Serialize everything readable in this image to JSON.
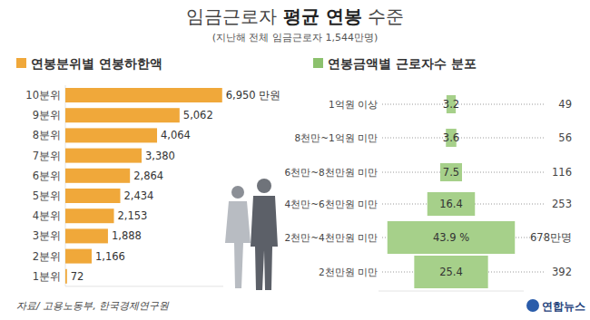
{
  "title": [
    "임금근로자",
    "평균 연봉",
    "수준"
  ],
  "subtitle": "(지난해 전체 임금근로자 1,544만명)",
  "source": "자료/ 고용노동부, 한국경제연구원",
  "credit": "연합뉴스",
  "chart_data": [
    {
      "type": "bar",
      "orientation": "horizontal",
      "title": "연봉분위별 연봉하한액",
      "categories": [
        "10분위",
        "9분위",
        "8분위",
        "7분위",
        "6분위",
        "5분위",
        "4분위",
        "3분위",
        "2분위",
        "1분위"
      ],
      "values": [
        6950,
        5062,
        4064,
        3380,
        2864,
        2434,
        2153,
        1888,
        1166,
        72
      ],
      "value_labels": [
        "6,950 만원",
        "5,062",
        "4,064",
        "3,380",
        "2,864",
        "2,434",
        "2,153",
        "1,888",
        "1,166",
        "72"
      ],
      "color": "#f0a83a",
      "xlim": [
        0,
        7000
      ],
      "xticks": [],
      "tick_labels": "y",
      "data_labels": true
    },
    {
      "type": "pyramid",
      "title": "연봉금액별 근로자수 분포",
      "categories": [
        "1억원 이상",
        "8천만~1억원 미만",
        "6천만~8천만원 미만",
        "4천만~6천만원 미만",
        "2천만~4천만원 미만",
        "2천만원 미만"
      ],
      "values": [
        3.2,
        3.6,
        7.5,
        16.4,
        43.9,
        25.4
      ],
      "value_labels": [
        "3.2",
        "3.6",
        "7.5",
        "16.4",
        "43.9 %",
        "25.4"
      ],
      "counts": [
        49,
        56,
        116,
        253,
        678,
        392
      ],
      "count_labels": [
        "49",
        "56",
        "116",
        "253",
        "678만명",
        "392"
      ],
      "color": "#a6d08a",
      "xlim": [
        0,
        50
      ],
      "xticks": [],
      "tick_labels": "y",
      "data_labels": true
    }
  ]
}
